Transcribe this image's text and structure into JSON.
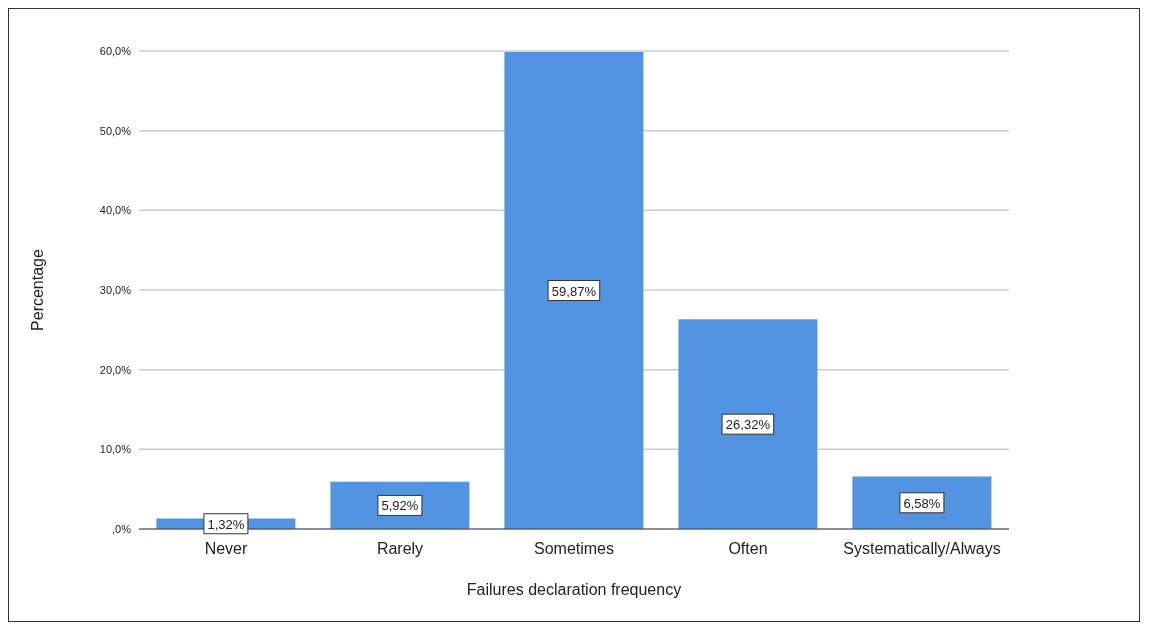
{
  "chart_data": {
    "type": "bar",
    "xlabel": "Failures declaration frequency",
    "ylabel": "Percentage",
    "categories": [
      "Never",
      "Rarely",
      "Sometimes",
      "Often",
      "Systematically/Always"
    ],
    "values": [
      1.32,
      5.92,
      59.87,
      26.32,
      6.58
    ],
    "value_labels": [
      "1,32%",
      "5,92%",
      "59,87%",
      "26,32%",
      "6,58%"
    ],
    "color": "#5294e2",
    "ylim": [
      0,
      60
    ],
    "yticks": [
      {
        "value": 0,
        "label": ",0%"
      },
      {
        "value": 10,
        "label": "10,0%"
      },
      {
        "value": 20,
        "label": "20,0%"
      },
      {
        "value": 30,
        "label": "30,0%"
      },
      {
        "value": 40,
        "label": "40,0%"
      },
      {
        "value": 50,
        "label": "50,0%"
      },
      {
        "value": 60,
        "label": "60,0%"
      }
    ],
    "grid": "y"
  }
}
